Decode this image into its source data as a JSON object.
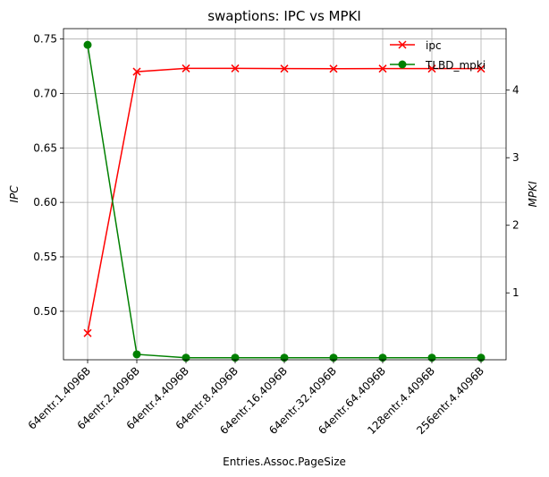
{
  "chart_data": {
    "type": "line",
    "title": "swaptions: IPC vs MPKI",
    "xlabel": "Entries.Assoc.PageSize",
    "ylabel_left": "IPC",
    "ylabel_right": "MPKI",
    "categories": [
      "64entr.1.4096B",
      "64entr.2.4096B",
      "64entr.4.4096B",
      "64entr.8.4096B",
      "64entr.16.4096B",
      "64entr.32.4096B",
      "64entr.64.4096B",
      "128entr.4.4096B",
      "256entr.4.4096B"
    ],
    "series": [
      {
        "name": "ipc",
        "axis": "left",
        "color": "#ff0000",
        "marker": "x",
        "values": [
          0.48,
          0.72,
          0.723,
          0.723,
          0.7228,
          0.7227,
          0.7228,
          0.7228,
          0.7228
        ]
      },
      {
        "name": "TLBD_mpki",
        "axis": "right",
        "color": "#008000",
        "marker": "circle",
        "values": [
          4.67,
          0.09,
          0.04,
          0.04,
          0.04,
          0.04,
          0.04,
          0.04,
          0.04
        ]
      }
    ],
    "ylim_left": [
      0.4555,
      0.7595
    ],
    "ylim_right": [
      0.01,
      4.91
    ],
    "yticks_left": [
      "0.50",
      "0.55",
      "0.60",
      "0.65",
      "0.70",
      "0.75"
    ],
    "yticks_right": [
      "1",
      "2",
      "3",
      "4"
    ],
    "grid": true,
    "legend_position": "top-right"
  }
}
